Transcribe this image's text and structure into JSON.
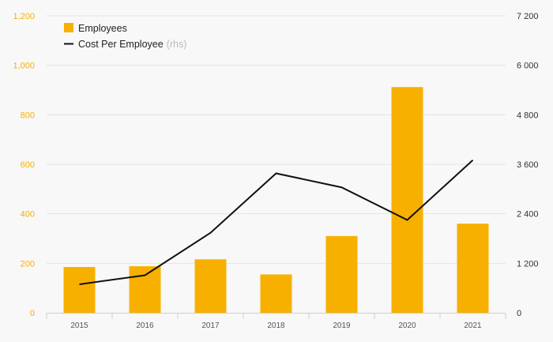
{
  "colors": {
    "background": "#f8f8f8",
    "bar": "#f8b000",
    "line": "#111111",
    "left_tick": "#f8b000",
    "right_tick": "#333333",
    "x_tick": "#555555",
    "grid": "#e4e4e4",
    "axis": "#cfcfcf",
    "legend_note": "#bbbbbb"
  },
  "legend": {
    "employees_label": "Employees",
    "cost_label": "Cost Per Employee",
    "cost_note": "(rhs)"
  },
  "chart_data": {
    "type": "bar",
    "categories": [
      "2015",
      "2016",
      "2017",
      "2018",
      "2019",
      "2020",
      "2021"
    ],
    "series": [
      {
        "name": "Employees",
        "type": "bar",
        "axis": "left",
        "values": [
          185,
          188,
          216,
          155,
          310,
          912,
          360
        ]
      },
      {
        "name": "Cost Per Employee",
        "type": "line",
        "axis": "right",
        "values": [
          690,
          910,
          1940,
          3380,
          3040,
          2250,
          3700
        ]
      }
    ],
    "ylim_left": [
      0,
      1200
    ],
    "ylim_right": [
      0,
      7200
    ],
    "left_ticks": [
      "0",
      "200",
      "400",
      "600",
      "800",
      "1,000",
      "1,200"
    ],
    "right_ticks": [
      "0",
      "1 200",
      "2 400",
      "3 600",
      "4 800",
      "6 000",
      "7 200"
    ],
    "grid": true,
    "legend_position": "top-left"
  }
}
